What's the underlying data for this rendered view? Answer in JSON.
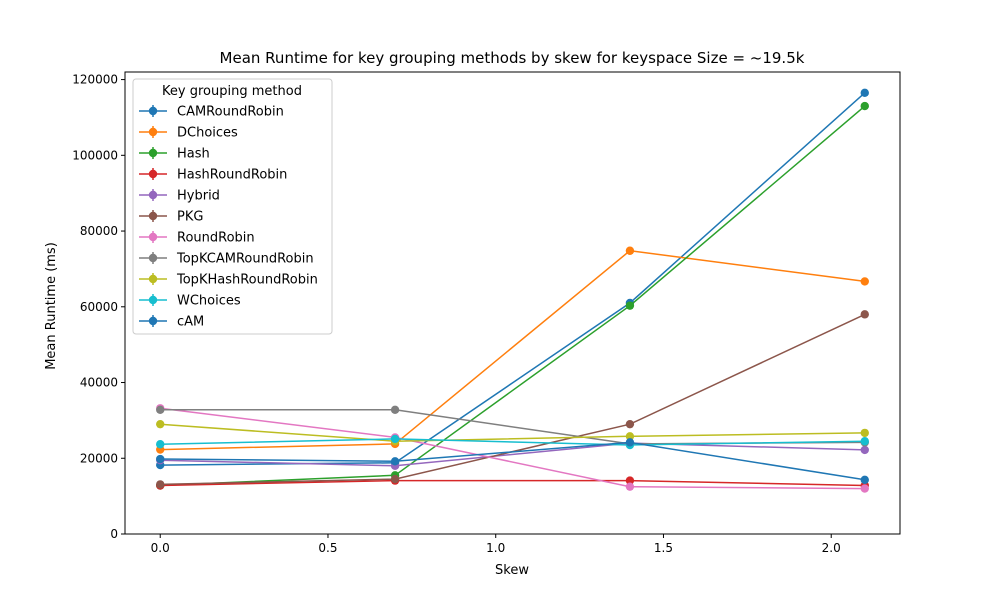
{
  "chart_data": {
    "type": "line",
    "title": "Mean Runtime for key grouping methods by skew for keyspace Size = ~19.5k",
    "xlabel": "Skew",
    "ylabel": "Mean Runtime (ms)",
    "xlim": [
      -0.105,
      2.205
    ],
    "ylim": [
      0,
      122000
    ],
    "xticks": [
      0.0,
      0.5,
      1.0,
      1.5,
      2.0
    ],
    "xtick_labels": [
      "0.0",
      "0.5",
      "1.0",
      "1.5",
      "2.0"
    ],
    "yticks": [
      0,
      20000,
      40000,
      60000,
      80000,
      100000,
      120000
    ],
    "ytick_labels": [
      "0",
      "20000",
      "40000",
      "60000",
      "80000",
      "100000",
      "120000"
    ],
    "grid": false,
    "legend": {
      "title": "Key grouping method",
      "placement": "top-left"
    },
    "x": [
      0.0,
      0.7,
      1.4,
      2.1
    ],
    "series": [
      {
        "name": "CAMRoundRobin",
        "color": "#1f77b4",
        "values": [
          18200,
          18800,
          61000,
          116500
        ]
      },
      {
        "name": "DChoices",
        "color": "#ff7f0e",
        "values": [
          22300,
          23800,
          74800,
          66700
        ]
      },
      {
        "name": "Hash",
        "color": "#2ca02c",
        "values": [
          12800,
          15500,
          60300,
          113000
        ]
      },
      {
        "name": "HashRoundRobin",
        "color": "#d62728",
        "values": [
          12800,
          14100,
          14100,
          12800
        ]
      },
      {
        "name": "Hybrid",
        "color": "#9467bd",
        "values": [
          19500,
          18000,
          24000,
          22200
        ]
      },
      {
        "name": "PKG",
        "color": "#8c564b",
        "values": [
          13100,
          14500,
          29000,
          58000
        ]
      },
      {
        "name": "RoundRobin",
        "color": "#e377c2",
        "values": [
          33200,
          25500,
          12500,
          12000
        ]
      },
      {
        "name": "TopKCAMRoundRobin",
        "color": "#7f7f7f",
        "values": [
          32800,
          32800,
          23800,
          24200
        ]
      },
      {
        "name": "TopKHashRoundRobin",
        "color": "#bcbd22",
        "values": [
          29000,
          24500,
          25800,
          26700
        ]
      },
      {
        "name": "WChoices",
        "color": "#17becf",
        "values": [
          23700,
          25100,
          23500,
          24500
        ]
      },
      {
        "name": "cAM",
        "color": "#1f77b4",
        "values": [
          19800,
          19200,
          24200,
          14300
        ]
      }
    ]
  }
}
